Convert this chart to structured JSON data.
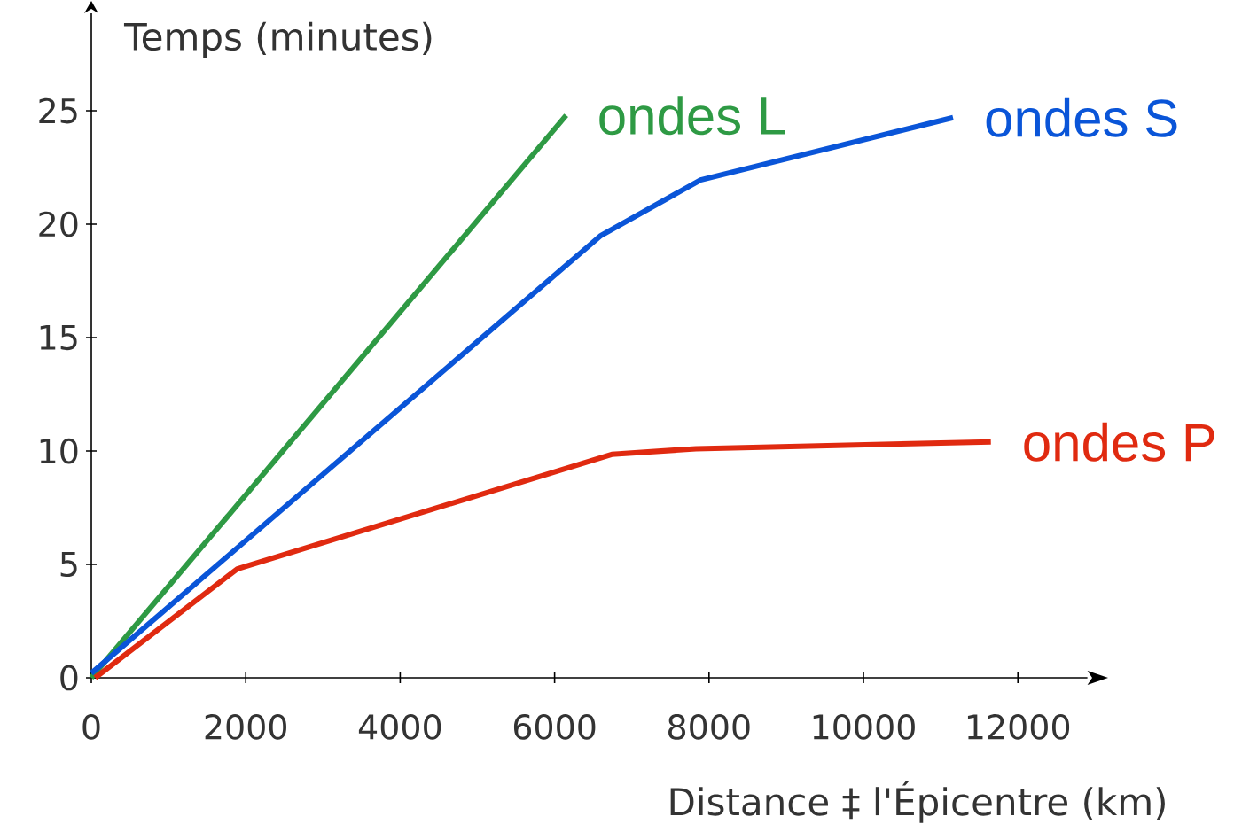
{
  "chart_data": {
    "type": "line",
    "xlabel": "Distance ‡ l'Épicentre (km)",
    "ylabel": "Temps (minutes)",
    "xlim": [
      0,
      12900
    ],
    "ylim": [
      0,
      29.3
    ],
    "xticks": [
      0,
      2000,
      4000,
      6000,
      8000,
      10000,
      12000
    ],
    "yticks": [
      0,
      5,
      10,
      15,
      20,
      25
    ],
    "line_style": "solid",
    "series": [
      {
        "name": "ondes L",
        "color": "#2e9a44",
        "x": [
          0,
          6150
        ],
        "values": [
          0,
          24.8
        ]
      },
      {
        "name": "ondes S",
        "color": "#0a55d8",
        "x": [
          0,
          6600,
          7890,
          11160
        ],
        "values": [
          0.2,
          19.5,
          21.95,
          24.7
        ]
      },
      {
        "name": "ondes P",
        "color": "#e02a10",
        "x": [
          50,
          1890,
          6740,
          7830,
          11650
        ],
        "values": [
          0,
          4.8,
          9.85,
          10.1,
          10.4
        ]
      }
    ]
  }
}
